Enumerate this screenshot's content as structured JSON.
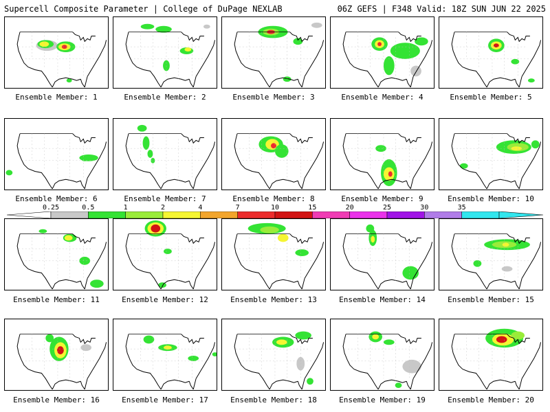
{
  "header": {
    "title": "Supercell Composite Parameter | College of DuPage NEXLAB",
    "run_info": "06Z GEFS | F348 Valid: 18Z SUN JUN 22 2025"
  },
  "colorbar": {
    "labels": [
      "0.25",
      "0.5",
      "1",
      "2",
      "4",
      "7",
      "10",
      "15",
      "20",
      "25",
      "30",
      "35"
    ],
    "colors": [
      "#c8c8c8",
      "#34e334",
      "#9aec3a",
      "#f5f532",
      "#f2a52c",
      "#ec2c2c",
      "#d21414",
      "#f03cb4",
      "#ea32ea",
      "#a014e6",
      "#b07ce8",
      "#32e6ee"
    ]
  },
  "members": [
    {
      "label": "Ensemble Member: 1"
    },
    {
      "label": "Ensemble Member: 2"
    },
    {
      "label": "Ensemble Member: 3"
    },
    {
      "label": "Ensemble Member: 4"
    },
    {
      "label": "Ensemble Member: 5"
    },
    {
      "label": "Ensemble Member: 6"
    },
    {
      "label": "Ensemble Member: 7"
    },
    {
      "label": "Ensemble Member: 8"
    },
    {
      "label": "Ensemble Member: 9"
    },
    {
      "label": "Ensemble Member: 10"
    },
    {
      "label": "Ensemble Member: 11"
    },
    {
      "label": "Ensemble Member: 12"
    },
    {
      "label": "Ensemble Member: 13"
    },
    {
      "label": "Ensemble Member: 14"
    },
    {
      "label": "Ensemble Member: 15"
    },
    {
      "label": "Ensemble Member: 16"
    },
    {
      "label": "Ensemble Member: 17"
    },
    {
      "label": "Ensemble Member: 18"
    },
    {
      "label": "Ensemble Member: 19"
    },
    {
      "label": "Ensemble Member: 20"
    }
  ]
}
